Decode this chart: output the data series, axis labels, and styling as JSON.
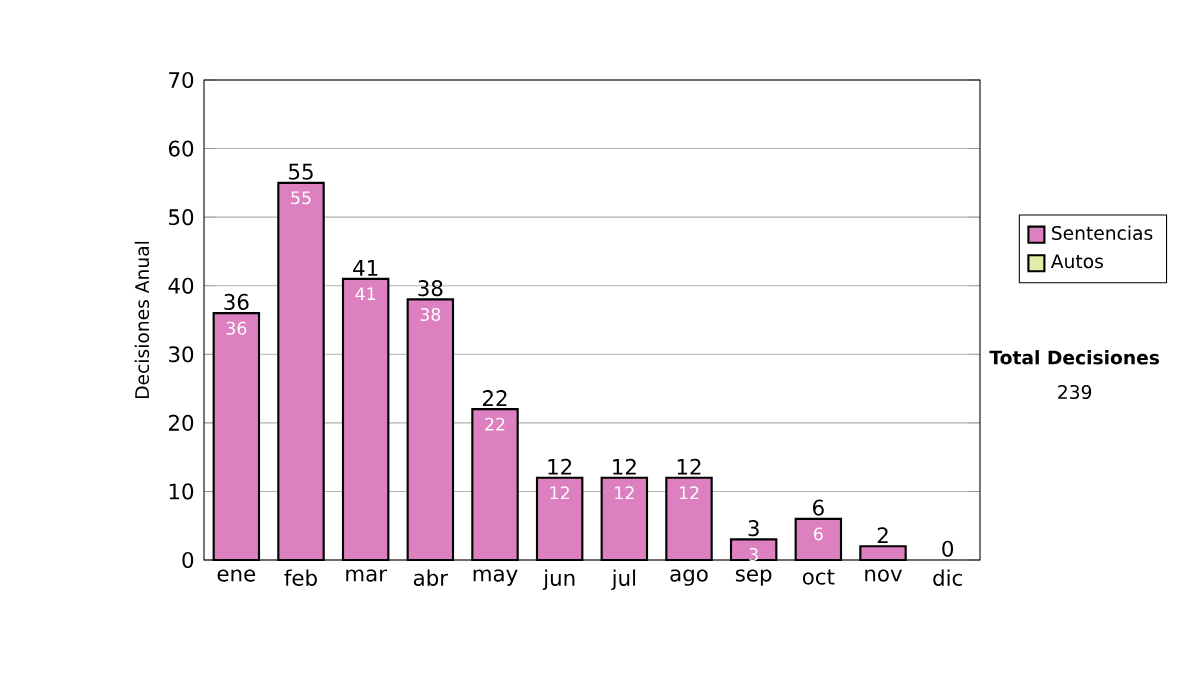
{
  "chart_data": {
    "type": "bar",
    "stacked": true,
    "ylabel": "Decisiones Anual",
    "categories": [
      "ene",
      "feb",
      "mar",
      "abr",
      "may",
      "jun",
      "jul",
      "ago",
      "sep",
      "oct",
      "nov",
      "dic"
    ],
    "series": [
      {
        "name": "Sentencias",
        "color": "#dd80c0",
        "values": [
          36,
          55,
          41,
          38,
          22,
          12,
          12,
          12,
          3,
          6,
          2,
          0
        ],
        "value_labels": [
          "36",
          "55",
          "41",
          "38",
          "22",
          "12",
          "12",
          "12",
          "3",
          "6",
          null,
          null
        ]
      },
      {
        "name": "Autos",
        "color": "#e0eea8",
        "values": [
          0,
          0,
          0,
          0,
          0,
          0,
          0,
          0,
          0,
          0,
          0,
          0
        ]
      }
    ],
    "totals": [
      "36",
      "55",
      "41",
      "38",
      "22",
      "12",
      "12",
      "12",
      "3",
      "6",
      "2",
      "0"
    ],
    "ylim": [
      0,
      70
    ],
    "yticks": [
      0,
      10,
      20,
      30,
      40,
      50,
      60,
      70
    ],
    "grid": "y",
    "legend": "right",
    "annotations": [
      "Total Decisiones",
      "239"
    ]
  }
}
